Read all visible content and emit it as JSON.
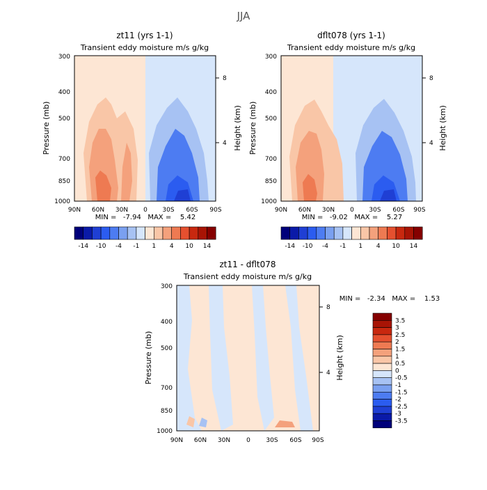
{
  "figure_title": "JJA",
  "chart_data": [
    {
      "type": "heatmap",
      "title": "zt11 (yrs 1-1)",
      "subtitle": "Transient eddy moisture m/s g/kg",
      "ylabel": "Pressure (mb)",
      "y2label": "Height (km)",
      "x_ticks": [
        "90N",
        "60N",
        "30N",
        "0",
        "30S",
        "60S",
        "90S"
      ],
      "y_ticks": [
        "300",
        "400",
        "500",
        "700",
        "850",
        "1000"
      ],
      "y2_ticks": [
        "8",
        "4"
      ],
      "stats": "MIN =   -7.94   MAX =    5.42",
      "colorbar_labels": [
        "-14",
        "-10",
        "-4",
        "-1",
        "1",
        "4",
        "10",
        "14"
      ]
    },
    {
      "type": "heatmap",
      "title": "dflt078 (yrs 1-1)",
      "subtitle": "Transient eddy moisture m/s g/kg",
      "ylabel": "Pressure (mb)",
      "y2label": "Height (km)",
      "x_ticks": [
        "90N",
        "60N",
        "30N",
        "0",
        "30S",
        "60S",
        "90S"
      ],
      "y_ticks": [
        "300",
        "400",
        "500",
        "700",
        "850",
        "1000"
      ],
      "y2_ticks": [
        "8",
        "4"
      ],
      "stats": "MIN =   -9.02   MAX =    5.27",
      "colorbar_labels": [
        "-14",
        "-10",
        "-4",
        "-1",
        "1",
        "4",
        "10",
        "14"
      ]
    },
    {
      "type": "heatmap",
      "title": "zt11 - dflt078",
      "subtitle": "Transient eddy moisture m/s g/kg",
      "ylabel": "Pressure (mb)",
      "y2label": "Height (km)",
      "x_ticks": [
        "90N",
        "60N",
        "30N",
        "0",
        "30S",
        "60S",
        "90S"
      ],
      "y_ticks": [
        "300",
        "400",
        "500",
        "700",
        "850",
        "1000"
      ],
      "y2_ticks": [
        "8",
        "4"
      ],
      "stats": "MIN =   -2.34   MAX =    1.53",
      "colorbar_labels": [
        "3.5",
        "3",
        "2.5",
        "2",
        "1.5",
        "1",
        "0.5",
        "0",
        "-0.5",
        "-1",
        "-1.5",
        "-2",
        "-2.5",
        "-3",
        "-3.5"
      ]
    }
  ],
  "colors": {
    "ramp": [
      "#00007a",
      "#0a1aa8",
      "#1f3fd4",
      "#2b5cf0",
      "#4d7cf2",
      "#7aa0f0",
      "#a7c2f3",
      "#d6e6fb",
      "#fde6d4",
      "#f9c6a7",
      "#f4a17c",
      "#ee7a52",
      "#e5502f",
      "#c8280f",
      "#a81405",
      "#850000"
    ]
  }
}
